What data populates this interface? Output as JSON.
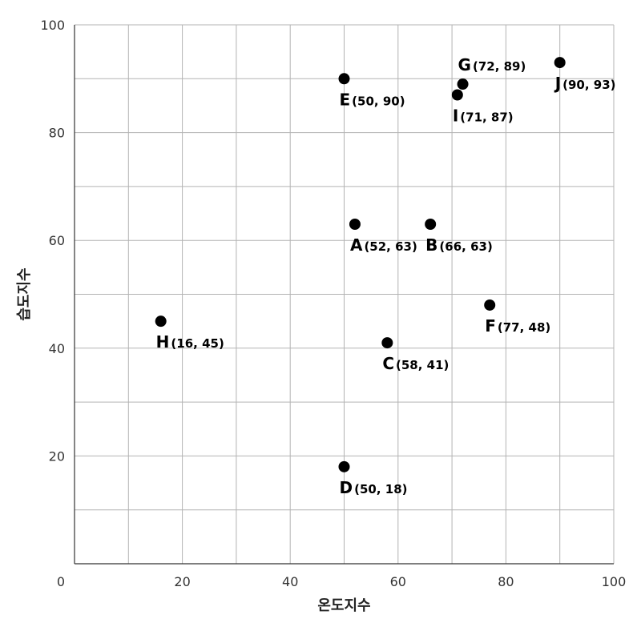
{
  "chart_data": {
    "type": "scatter",
    "xlabel": "온도지수",
    "ylabel": "습도지수",
    "xlim": [
      0,
      100
    ],
    "ylim": [
      0,
      100
    ],
    "x_ticks": [
      0,
      20,
      40,
      60,
      80,
      100
    ],
    "y_ticks": [
      20,
      40,
      60,
      80,
      100
    ],
    "grid": true,
    "points": [
      {
        "name": "A",
        "x": 52,
        "y": 63,
        "label": "(52, 63)",
        "pos": "below"
      },
      {
        "name": "B",
        "x": 66,
        "y": 63,
        "label": "(66, 63)",
        "pos": "below"
      },
      {
        "name": "C",
        "x": 58,
        "y": 41,
        "label": "(58, 41)",
        "pos": "below"
      },
      {
        "name": "D",
        "x": 50,
        "y": 18,
        "label": "(50, 18)",
        "pos": "below"
      },
      {
        "name": "E",
        "x": 50,
        "y": 90,
        "label": "(50, 90)",
        "pos": "below"
      },
      {
        "name": "F",
        "x": 77,
        "y": 48,
        "label": "(77, 48)",
        "pos": "below"
      },
      {
        "name": "G",
        "x": 72,
        "y": 89,
        "label": "(72, 89)",
        "pos": "above"
      },
      {
        "name": "H",
        "x": 16,
        "y": 45,
        "label": "(16, 45)",
        "pos": "below"
      },
      {
        "name": "I",
        "x": 71,
        "y": 87,
        "label": "(71, 87)",
        "pos": "below"
      },
      {
        "name": "J",
        "x": 90,
        "y": 93,
        "label": "(90, 93)",
        "pos": "below"
      }
    ]
  }
}
